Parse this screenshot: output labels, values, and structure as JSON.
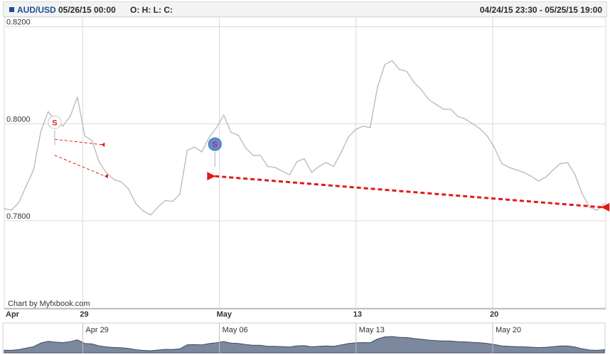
{
  "header": {
    "symbol": "AUD/USD",
    "datetime": "05/26/15 00:00",
    "ohlc_label": "O: H: L: C:",
    "range": "04/24/15 23:30 - 05/25/15 19:00"
  },
  "credit": "Chart by Myfxbook.com",
  "colors": {
    "price_line": "#bdbdbd",
    "trade_line": "#e21a1a",
    "grid": "#d9d9d9",
    "navigator_fill": "#5a6a86",
    "signal_blue": "#5b8fdc",
    "signal_white": "#ffffff"
  },
  "chart_data": {
    "type": "line",
    "series": [
      {
        "values": [
          0.7825,
          0.7822,
          0.7838,
          0.7872,
          0.7905,
          0.7985,
          0.8025,
          0.8005,
          0.7995,
          0.8015,
          0.8055,
          0.7975,
          0.7965,
          0.792,
          0.7898,
          0.7885,
          0.788,
          0.7865,
          0.7835,
          0.782,
          0.7812,
          0.7828,
          0.7842,
          0.784,
          0.7855,
          0.7945,
          0.7952,
          0.7942,
          0.7972,
          0.7992,
          0.8018,
          0.7982,
          0.7976,
          0.795,
          0.7935,
          0.7935,
          0.7912,
          0.791,
          0.7902,
          0.7895,
          0.7922,
          0.7928,
          0.79,
          0.7912,
          0.792,
          0.7912,
          0.794,
          0.7972,
          0.7988,
          0.7995,
          0.7992,
          0.8075,
          0.8122,
          0.813,
          0.8112,
          0.8108,
          0.8085,
          0.807,
          0.805,
          0.804,
          0.803,
          0.803,
          0.8015,
          0.801,
          0.8,
          0.799,
          0.7975,
          0.795,
          0.7918,
          0.791,
          0.7905,
          0.79,
          0.7892,
          0.7882,
          0.789,
          0.7905,
          0.7918,
          0.792,
          0.7895,
          0.7855,
          0.7828,
          0.7822,
          0.7835
        ]
      }
    ],
    "xlim": [
      "2015-04-24 23:30",
      "2015-05-25 19:00"
    ],
    "ylim": [
      0.762,
      0.822
    ],
    "y_ticks": [
      0.78,
      0.8,
      0.82
    ],
    "y_tick_labels": [
      "0.7800",
      "0.8000",
      "0.8200"
    ],
    "x_tick_labels": [
      "Apr",
      "29",
      "May",
      "13",
      "20"
    ],
    "navigator_labels": [
      "Apr 29",
      "May 06",
      "May 13",
      "May 20"
    ],
    "grid": true,
    "signals": [
      {
        "label": "S",
        "style": "white",
        "x": "2015-04-27 13:30",
        "y": 0.8
      },
      {
        "label": "S",
        "style": "blue",
        "x": "2015-05-05 18:30",
        "y": 0.7955
      }
    ],
    "trades": [
      {
        "style": "thin",
        "from": {
          "x": "2015-04-27 13:30",
          "y": 0.7968
        },
        "to": {
          "x": "2015-04-29 23:30",
          "y": 0.7957
        }
      },
      {
        "style": "thin",
        "from": {
          "x": "2015-04-27 13:30",
          "y": 0.7935
        },
        "to": {
          "x": "2015-04-30 03:30",
          "y": 0.7892
        }
      },
      {
        "style": "thick",
        "from": {
          "x": "2015-05-05 18:30",
          "y": 0.7892
        },
        "to": {
          "x": "2015-05-25 14:00",
          "y": 0.7828
        }
      }
    ]
  }
}
